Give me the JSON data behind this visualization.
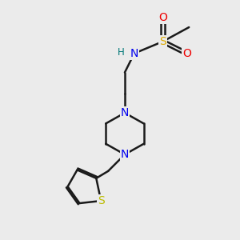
{
  "bg_color": "#ebebeb",
  "bond_color": "#1a1a1a",
  "bond_width": 1.8,
  "atom_colors": {
    "N": "#0000ee",
    "S_sulfonamide": "#ddaa00",
    "S_thiophene": "#bbbb00",
    "O": "#ee0000",
    "H": "#007777",
    "C": "#1a1a1a"
  },
  "font_size_atom": 10,
  "font_size_small": 8.5
}
